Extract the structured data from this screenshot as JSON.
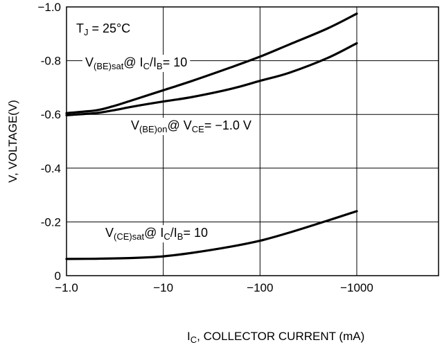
{
  "chart_data": {
    "type": "line",
    "title": "",
    "xlabel": {
      "main": "I",
      "sub": "C",
      "rest": ", COLLECTOR CURRENT (mA)"
    },
    "ylabel": "V, VOLTAGE(V)",
    "x_scale": "log",
    "y_inverted": true,
    "xlim": [
      1,
      7000
    ],
    "ylim": [
      0,
      -1.0
    ],
    "grid": true,
    "x_ticks": [
      1,
      10,
      100,
      1000
    ],
    "x_tick_labels": [
      "−1.0",
      "−10",
      "−100",
      "−1000"
    ],
    "y_ticks": [
      0,
      -0.2,
      -0.4,
      -0.6,
      -0.8,
      -1.0
    ],
    "y_tick_labels": [
      "0",
      "-0.2",
      "-0.4",
      "-0.6",
      "-0.8",
      "−1.0"
    ],
    "annotations": [
      {
        "id": "temp",
        "main": "T",
        "sub": "J",
        "rest": " = 25°C"
      }
    ],
    "series": [
      {
        "id": "vbe_sat",
        "label": {
          "parts": [
            [
              "V",
              ""
            ],
            [
              "(BE)sat",
              "sub"
            ],
            [
              "@ I",
              ""
            ],
            [
              "C",
              "sub"
            ],
            [
              "/I",
              ""
            ],
            [
              "B",
              "sub"
            ],
            [
              "= 10",
              ""
            ]
          ]
        },
        "x": [
          1,
          2,
          3,
          5,
          10,
          20,
          50,
          100,
          200,
          500,
          1000
        ],
        "y": [
          -0.605,
          -0.615,
          -0.63,
          -0.655,
          -0.69,
          -0.725,
          -0.775,
          -0.815,
          -0.86,
          -0.92,
          -0.975
        ]
      },
      {
        "id": "vbe_on",
        "label": {
          "parts": [
            [
              "V",
              ""
            ],
            [
              "(BE)on",
              "sub"
            ],
            [
              "@ V",
              ""
            ],
            [
              "CE",
              "sub"
            ],
            [
              "= −1.0 V",
              ""
            ]
          ]
        },
        "x": [
          1,
          2,
          3,
          5,
          10,
          20,
          50,
          100,
          200,
          500,
          1000
        ],
        "y": [
          -0.597,
          -0.605,
          -0.615,
          -0.63,
          -0.648,
          -0.665,
          -0.695,
          -0.725,
          -0.755,
          -0.81,
          -0.865
        ]
      },
      {
        "id": "vce_sat",
        "label": {
          "parts": [
            [
              "V",
              ""
            ],
            [
              "(CE)sat",
              "sub"
            ],
            [
              "@ I",
              ""
            ],
            [
              "C",
              "sub"
            ],
            [
              "/I",
              ""
            ],
            [
              "B",
              "sub"
            ],
            [
              "= 10",
              ""
            ]
          ]
        },
        "x": [
          1,
          2,
          5,
          10,
          20,
          50,
          100,
          200,
          500,
          1000
        ],
        "y": [
          -0.062,
          -0.063,
          -0.066,
          -0.072,
          -0.085,
          -0.108,
          -0.13,
          -0.16,
          -0.205,
          -0.24
        ]
      }
    ]
  }
}
